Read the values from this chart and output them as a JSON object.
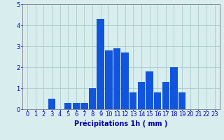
{
  "categories": [
    0,
    1,
    2,
    3,
    4,
    5,
    6,
    7,
    8,
    9,
    10,
    11,
    12,
    13,
    14,
    15,
    16,
    17,
    18,
    19,
    20,
    21,
    22,
    23
  ],
  "values": [
    0,
    0,
    0,
    0.5,
    0,
    0.3,
    0.3,
    0.3,
    1.0,
    4.3,
    2.8,
    2.9,
    2.7,
    0.8,
    1.3,
    1.8,
    0.8,
    1.3,
    2.0,
    0.8,
    0,
    0,
    0,
    0
  ],
  "bar_color": "#1155dd",
  "background_color": "#d8eeee",
  "grid_color": "#aacccc",
  "xlabel": "Précipitations 1h ( mm )",
  "ylim": [
    0,
    5
  ],
  "xlim": [
    -0.6,
    23.6
  ],
  "yticks": [
    0,
    1,
    2,
    3,
    4,
    5
  ],
  "xticks": [
    0,
    1,
    2,
    3,
    4,
    5,
    6,
    7,
    8,
    9,
    10,
    11,
    12,
    13,
    14,
    15,
    16,
    17,
    18,
    19,
    20,
    21,
    22,
    23
  ],
  "xlabel_fontsize": 7,
  "tick_fontsize": 6,
  "bar_width": 0.9
}
